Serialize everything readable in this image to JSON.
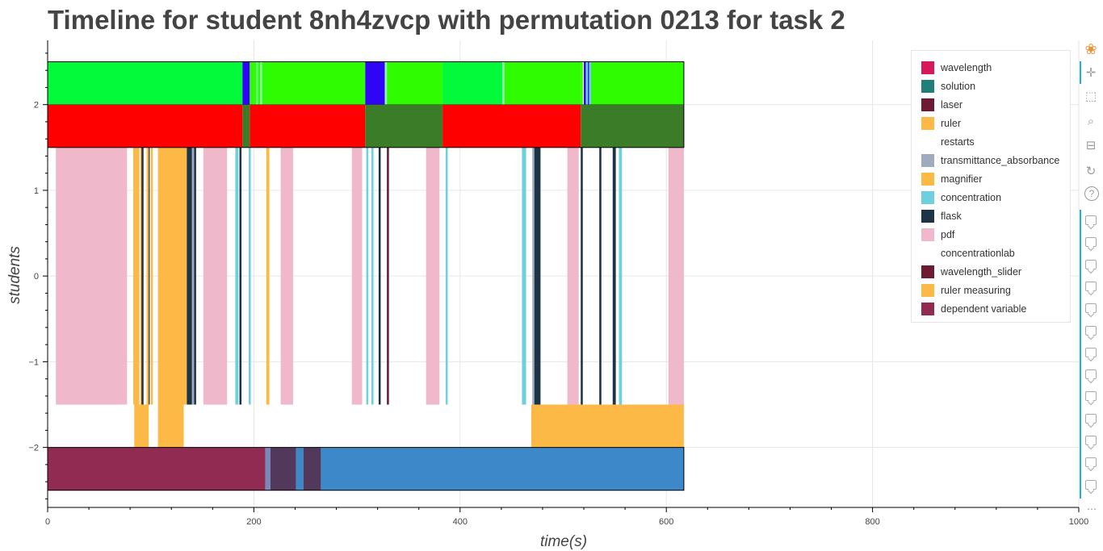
{
  "chart_data": {
    "type": "timeline",
    "title": "Timeline for student 8nh4zvcp with permutation 0213 for task 2",
    "xlabel": "time(s)",
    "ylabel": "students",
    "xlim": [
      0,
      1000
    ],
    "ylim": [
      -2.7,
      2.75
    ],
    "x_ticks": [
      0,
      200,
      400,
      600,
      800,
      1000
    ],
    "y_ticks": [
      -2,
      -1,
      0,
      1,
      2
    ],
    "grid": true,
    "legend_position": "top-right",
    "legend": [
      {
        "label": "wavelength",
        "color": "#d6195a"
      },
      {
        "label": "solution",
        "color": "#217f78"
      },
      {
        "label": "laser",
        "color": "#6d1a32"
      },
      {
        "label": "ruler",
        "color": "#fdb945"
      },
      {
        "label": "restarts",
        "color": "#ffffff"
      },
      {
        "label": "transmittance_absorbance",
        "color": "#9fabbe"
      },
      {
        "label": "magnifier",
        "color": "#fdb945"
      },
      {
        "label": "concentration",
        "color": "#6fd0dd"
      },
      {
        "label": "flask",
        "color": "#1d3346"
      },
      {
        "label": "pdf",
        "color": "#f0b8cb"
      },
      {
        "label": "concentrationlab",
        "color": "#ffffff"
      },
      {
        "label": "wavelength_slider",
        "color": "#6d1a32"
      },
      {
        "label": "ruler measuring",
        "color": "#fdb945"
      },
      {
        "label": "dependent variable",
        "color": "#922b52"
      }
    ],
    "segments": [
      {
        "y0": 2.0,
        "y1": 2.5,
        "x0": 0,
        "x1": 189,
        "color": "#03fa3b"
      },
      {
        "y0": 2.0,
        "y1": 2.5,
        "x0": 189,
        "x1": 196,
        "color": "#3005f7"
      },
      {
        "y0": 2.0,
        "y1": 2.5,
        "x0": 196,
        "x1": 308,
        "color": "#2ffc00"
      },
      {
        "y0": 2.0,
        "y1": 2.5,
        "x0": 202,
        "x1": 204,
        "color": "#66ff88"
      },
      {
        "y0": 2.0,
        "y1": 2.5,
        "x0": 206,
        "x1": 208,
        "color": "#88ffaa"
      },
      {
        "y0": 2.0,
        "y1": 2.5,
        "x0": 308,
        "x1": 327,
        "color": "#3005f7"
      },
      {
        "y0": 2.0,
        "y1": 2.5,
        "x0": 327,
        "x1": 329,
        "color": "#88ffaa"
      },
      {
        "y0": 2.0,
        "y1": 2.5,
        "x0": 329,
        "x1": 383,
        "color": "#2ffc00"
      },
      {
        "y0": 2.0,
        "y1": 2.5,
        "x0": 383,
        "x1": 441,
        "color": "#03fa3b"
      },
      {
        "y0": 2.0,
        "y1": 2.5,
        "x0": 441,
        "x1": 443,
        "color": "#88ffaa"
      },
      {
        "y0": 2.0,
        "y1": 2.5,
        "x0": 443,
        "x1": 517,
        "color": "#2ffc00"
      },
      {
        "y0": 2.0,
        "y1": 2.5,
        "x0": 517,
        "x1": 519,
        "color": "#2ffc00"
      },
      {
        "y0": 2.0,
        "y1": 2.5,
        "x0": 520,
        "x1": 522,
        "color": "#3005f7"
      },
      {
        "y0": 2.0,
        "y1": 2.5,
        "x0": 522,
        "x1": 527,
        "color": "#6fd0dd"
      },
      {
        "y0": 2.0,
        "y1": 2.5,
        "x0": 524,
        "x1": 525,
        "color": "#3005f7"
      },
      {
        "y0": 2.0,
        "y1": 2.5,
        "x0": 527,
        "x1": 617,
        "color": "#2ffc00"
      },
      {
        "y0": 1.5,
        "y1": 2.0,
        "x0": 0,
        "x1": 189,
        "color": "#ff0000"
      },
      {
        "y0": 1.5,
        "y1": 2.0,
        "x0": 189,
        "x1": 196,
        "color": "#3a7c27"
      },
      {
        "y0": 1.5,
        "y1": 2.0,
        "x0": 196,
        "x1": 308,
        "color": "#ff0000"
      },
      {
        "y0": 1.5,
        "y1": 2.0,
        "x0": 308,
        "x1": 383,
        "color": "#3a7c27"
      },
      {
        "y0": 1.5,
        "y1": 2.0,
        "x0": 383,
        "x1": 517,
        "color": "#ff0000"
      },
      {
        "y0": 1.5,
        "y1": 2.0,
        "x0": 517,
        "x1": 617,
        "color": "#3a7c27"
      },
      {
        "y0": -1.5,
        "y1": 1.5,
        "x0": 8,
        "x1": 77,
        "color": "#f0b8cb"
      },
      {
        "y0": -1.5,
        "y1": 1.5,
        "x0": 83,
        "x1": 89,
        "color": "#fdb945"
      },
      {
        "y0": -1.5,
        "y1": 1.5,
        "x0": 90,
        "x1": 91,
        "color": "#fdb945"
      },
      {
        "y0": -1.5,
        "y1": 1.5,
        "x0": 91,
        "x1": 93,
        "color": "#1d3346"
      },
      {
        "y0": -1.5,
        "y1": 1.5,
        "x0": 96,
        "x1": 98,
        "color": "#fdb945"
      },
      {
        "y0": -1.5,
        "y1": 1.5,
        "x0": 98,
        "x1": 99,
        "color": "#1d3346"
      },
      {
        "y0": -1.5,
        "y1": 1.5,
        "x0": 100,
        "x1": 102,
        "color": "#fdb945"
      },
      {
        "y0": -1.5,
        "y1": 1.5,
        "x0": 107,
        "x1": 135,
        "color": "#fdb945"
      },
      {
        "y0": -1.5,
        "y1": 1.5,
        "x0": 135,
        "x1": 140,
        "color": "#1d3346"
      },
      {
        "y0": -1.5,
        "y1": 1.5,
        "x0": 140,
        "x1": 142,
        "color": "#9fabbe"
      },
      {
        "y0": -1.5,
        "y1": 1.5,
        "x0": 142,
        "x1": 144,
        "color": "#1d3346"
      },
      {
        "y0": -1.5,
        "y1": 1.5,
        "x0": 151,
        "x1": 174,
        "color": "#f0b8cb"
      },
      {
        "y0": -1.5,
        "y1": 1.5,
        "x0": 182,
        "x1": 185,
        "color": "#6fd0dd"
      },
      {
        "y0": -1.5,
        "y1": 1.5,
        "x0": 186,
        "x1": 188,
        "color": "#1d3346"
      },
      {
        "y0": -1.5,
        "y1": 1.5,
        "x0": 195,
        "x1": 197,
        "color": "#6fd0dd"
      },
      {
        "y0": -1.5,
        "y1": 1.5,
        "x0": 212,
        "x1": 215,
        "color": "#fdb945"
      },
      {
        "y0": -1.5,
        "y1": 1.5,
        "x0": 226,
        "x1": 238,
        "color": "#f0b8cb"
      },
      {
        "y0": -1.5,
        "y1": 1.5,
        "x0": 295,
        "x1": 305,
        "color": "#f0b8cb"
      },
      {
        "y0": -1.5,
        "y1": 1.5,
        "x0": 309,
        "x1": 311,
        "color": "#6fd0dd"
      },
      {
        "y0": -1.5,
        "y1": 1.5,
        "x0": 314,
        "x1": 316,
        "color": "#6fd0dd"
      },
      {
        "y0": -1.5,
        "y1": 1.5,
        "x0": 321,
        "x1": 323,
        "color": "#1d3346"
      },
      {
        "y0": -1.5,
        "y1": 1.5,
        "x0": 329,
        "x1": 331,
        "color": "#6d1a32"
      },
      {
        "y0": -1.5,
        "y1": 1.5,
        "x0": 367,
        "x1": 380,
        "color": "#f0b8cb"
      },
      {
        "y0": -1.5,
        "y1": 1.5,
        "x0": 386,
        "x1": 388,
        "color": "#6fd0dd"
      },
      {
        "y0": -1.5,
        "y1": 1.5,
        "x0": 460,
        "x1": 464,
        "color": "#6fd0dd"
      },
      {
        "y0": -1.5,
        "y1": 1.5,
        "x0": 470,
        "x1": 472,
        "color": "#9fabbe"
      },
      {
        "y0": -1.5,
        "y1": 1.5,
        "x0": 472,
        "x1": 478,
        "color": "#1d3346"
      },
      {
        "y0": -1.5,
        "y1": 1.5,
        "x0": 504,
        "x1": 515,
        "color": "#f0b8cb"
      },
      {
        "y0": -1.5,
        "y1": 1.5,
        "x0": 517,
        "x1": 519,
        "color": "#1d3346"
      },
      {
        "y0": -1.5,
        "y1": 1.5,
        "x0": 535,
        "x1": 537,
        "color": "#1d3346"
      },
      {
        "y0": -1.5,
        "y1": 1.5,
        "x0": 548,
        "x1": 551,
        "color": "#1d3346"
      },
      {
        "y0": -1.5,
        "y1": 1.5,
        "x0": 554,
        "x1": 557,
        "color": "#6fd0dd"
      },
      {
        "y0": -1.5,
        "y1": 1.5,
        "x0": 602,
        "x1": 617,
        "color": "#f0b8cb"
      },
      {
        "y0": -2.0,
        "y1": -1.5,
        "x0": 84,
        "x1": 98,
        "color": "#fdb945"
      },
      {
        "y0": -2.0,
        "y1": -1.5,
        "x0": 107,
        "x1": 132,
        "color": "#fdb945"
      },
      {
        "y0": -2.0,
        "y1": -1.5,
        "x0": 469,
        "x1": 617,
        "color": "#fdb945"
      },
      {
        "y0": -2.5,
        "y1": -2.0,
        "x0": 0,
        "x1": 211,
        "color": "#922b52"
      },
      {
        "y0": -2.5,
        "y1": -2.0,
        "x0": 211,
        "x1": 216,
        "color": "#7a87b8"
      },
      {
        "y0": -2.5,
        "y1": -2.0,
        "x0": 216,
        "x1": 241,
        "color": "#52395c"
      },
      {
        "y0": -2.5,
        "y1": -2.0,
        "x0": 241,
        "x1": 248,
        "color": "#3c88c8"
      },
      {
        "y0": -2.5,
        "y1": -2.0,
        "x0": 248,
        "x1": 265,
        "color": "#52395c"
      },
      {
        "y0": -2.5,
        "y1": -2.0,
        "x0": 265,
        "x1": 617,
        "color": "#3c88c8"
      }
    ],
    "outlined_blocks": [
      {
        "y0": 1.5,
        "y1": 2.5,
        "x0": 0,
        "x1": 617
      },
      {
        "y0": -2.5,
        "y1": -2.0,
        "x0": 0,
        "x1": 617
      }
    ]
  },
  "toolbar": {
    "tools": [
      "bokeh-logo-icon",
      "pan-icon",
      "box-zoom-icon",
      "wheel-zoom-icon",
      "save-icon",
      "reset-icon",
      "help-icon"
    ],
    "hover_tool_count": 13
  }
}
